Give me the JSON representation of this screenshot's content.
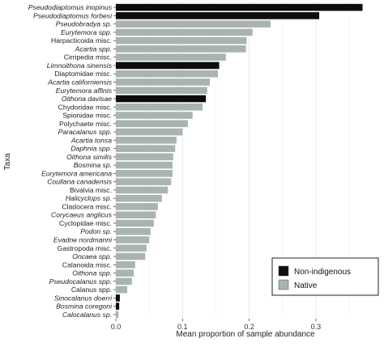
{
  "chart_data": {
    "type": "bar",
    "orientation": "horizontal",
    "title": "",
    "xlabel": "Mean proportion of sample abundance",
    "ylabel": "Taxa",
    "xlim": [
      0,
      0.39
    ],
    "xticks": [
      "0.0",
      "0.1",
      "0.2",
      "0.3"
    ],
    "grid": true,
    "legend_position": "bottom-right",
    "colors": {
      "Non-indigenous": "#0d0d0d",
      "Native": "#a9b3b1"
    },
    "series": [
      {
        "name": "Non-indigenous"
      },
      {
        "name": "Native"
      }
    ],
    "categories": [
      {
        "label": "Pseudodiaptomus inopinus",
        "value": 0.37,
        "group": "Non-indigenous",
        "italic": true
      },
      {
        "label": "Pseudodiaptomus forbesi",
        "value": 0.305,
        "group": "Non-indigenous",
        "italic": true
      },
      {
        "label": "Pseudobradya sp.",
        "value": 0.232,
        "group": "Native",
        "italic": true
      },
      {
        "label": "Eurytemora spp.",
        "value": 0.205,
        "group": "Native",
        "italic": true
      },
      {
        "label": "Harpacticoida misc.",
        "value": 0.196,
        "group": "Native",
        "italic": false
      },
      {
        "label": "Acartia spp.",
        "value": 0.195,
        "group": "Native",
        "italic": true
      },
      {
        "label": "Cirripedia misc.",
        "value": 0.165,
        "group": "Native",
        "italic": false
      },
      {
        "label": "Limnoithona sinensis",
        "value": 0.155,
        "group": "Non-indigenous",
        "italic": true
      },
      {
        "label": "Diaptomidae misc.",
        "value": 0.153,
        "group": "Native",
        "italic": false
      },
      {
        "label": "Acartia californiensis",
        "value": 0.141,
        "group": "Native",
        "italic": true
      },
      {
        "label": "Eurytemora affinis",
        "value": 0.137,
        "group": "Native",
        "italic": true
      },
      {
        "label": "Oithona davisae",
        "value": 0.135,
        "group": "Non-indigenous",
        "italic": true
      },
      {
        "label": "Chydoridae misc.",
        "value": 0.13,
        "group": "Native",
        "italic": false
      },
      {
        "label": "Spionidae misc.",
        "value": 0.115,
        "group": "Native",
        "italic": false
      },
      {
        "label": "Polychaete misc.",
        "value": 0.108,
        "group": "Native",
        "italic": false
      },
      {
        "label": "Paracalanus spp.",
        "value": 0.1,
        "group": "Native",
        "italic": true
      },
      {
        "label": "Acartia tonsa",
        "value": 0.091,
        "group": "Native",
        "italic": true
      },
      {
        "label": "Daphnia spp.",
        "value": 0.089,
        "group": "Native",
        "italic": true
      },
      {
        "label": "Oithona similis",
        "value": 0.086,
        "group": "Native",
        "italic": true
      },
      {
        "label": "Bosmina sp.",
        "value": 0.085,
        "group": "Native",
        "italic": true
      },
      {
        "label": "Eurytemora americana",
        "value": 0.085,
        "group": "Native",
        "italic": true
      },
      {
        "label": "Coullana canadensis",
        "value": 0.083,
        "group": "Native",
        "italic": true
      },
      {
        "label": "Bivalvia misc.",
        "value": 0.078,
        "group": "Native",
        "italic": false
      },
      {
        "label": "Halicyclops sp.",
        "value": 0.069,
        "group": "Native",
        "italic": true
      },
      {
        "label": "Cladocera misc.",
        "value": 0.063,
        "group": "Native",
        "italic": false
      },
      {
        "label": "Corycaeus anglicus",
        "value": 0.06,
        "group": "Native",
        "italic": true
      },
      {
        "label": "Cyclopidae misc.",
        "value": 0.057,
        "group": "Native",
        "italic": false
      },
      {
        "label": "Podon sp.",
        "value": 0.052,
        "group": "Native",
        "italic": true
      },
      {
        "label": "Evadne nordmanni",
        "value": 0.05,
        "group": "Native",
        "italic": true
      },
      {
        "label": "Gastropoda misc.",
        "value": 0.046,
        "group": "Native",
        "italic": false
      },
      {
        "label": "Oncaea spp.",
        "value": 0.044,
        "group": "Native",
        "italic": true
      },
      {
        "label": "Calanoida misc.",
        "value": 0.029,
        "group": "Native",
        "italic": false
      },
      {
        "label": "Oithona spp.",
        "value": 0.027,
        "group": "Native",
        "italic": true
      },
      {
        "label": "Pseudocalanus spp.",
        "value": 0.024,
        "group": "Native",
        "italic": true
      },
      {
        "label": "Calanus spp.",
        "value": 0.017,
        "group": "Native",
        "italic": false
      },
      {
        "label": "Sinocalanus doerri",
        "value": 0.006,
        "group": "Non-indigenous",
        "italic": true
      },
      {
        "label": "Bosmina coregoni",
        "value": 0.005,
        "group": "Non-indigenous",
        "italic": true
      },
      {
        "label": "Calocalanus sp.",
        "value": 0.004,
        "group": "Native",
        "italic": true
      }
    ]
  }
}
